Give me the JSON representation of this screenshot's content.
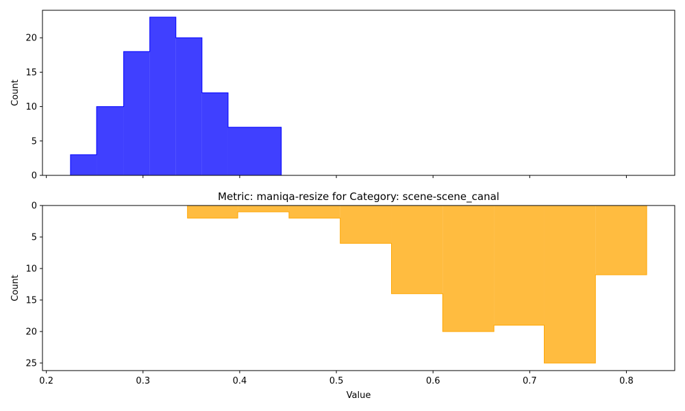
{
  "chart_data": [
    {
      "type": "histogram",
      "title": "",
      "xlabel": "",
      "ylabel": "Count",
      "xlim": [
        0.196,
        0.85
      ],
      "ylim": [
        0,
        24
      ],
      "inverted_y": false,
      "show_x_tick_labels": false,
      "x_ticks": [
        0.2,
        0.3,
        0.4,
        0.5,
        0.6,
        0.7,
        0.8
      ],
      "y_ticks": [
        0,
        5,
        10,
        15,
        20
      ],
      "color": "#0000ff",
      "bin_edges": [
        0.225,
        0.252,
        0.28,
        0.307,
        0.334,
        0.361,
        0.388,
        0.416,
        0.443
      ],
      "counts": [
        3,
        10,
        18,
        23,
        20,
        12,
        7,
        7
      ]
    },
    {
      "type": "histogram",
      "title": "Metric: maniqa-resize for Category: scene-scene_canal",
      "xlabel": "Value",
      "ylabel": "Count",
      "xlim": [
        0.196,
        0.85
      ],
      "ylim": [
        0,
        26.2
      ],
      "inverted_y": true,
      "show_x_tick_labels": true,
      "x_ticks": [
        0.2,
        0.3,
        0.4,
        0.5,
        0.6,
        0.7,
        0.8
      ],
      "x_tick_labels": [
        "0.2",
        "0.3",
        "0.4",
        "0.5",
        "0.6",
        "0.7",
        "0.8"
      ],
      "y_ticks": [
        0,
        5,
        10,
        15,
        20,
        25
      ],
      "color": "#ffa500",
      "bin_edges": [
        0.346,
        0.398,
        0.451,
        0.504,
        0.557,
        0.61,
        0.663,
        0.715,
        0.768,
        0.821
      ],
      "counts": [
        2,
        1,
        2,
        6,
        14,
        20,
        19,
        25,
        11
      ]
    }
  ]
}
